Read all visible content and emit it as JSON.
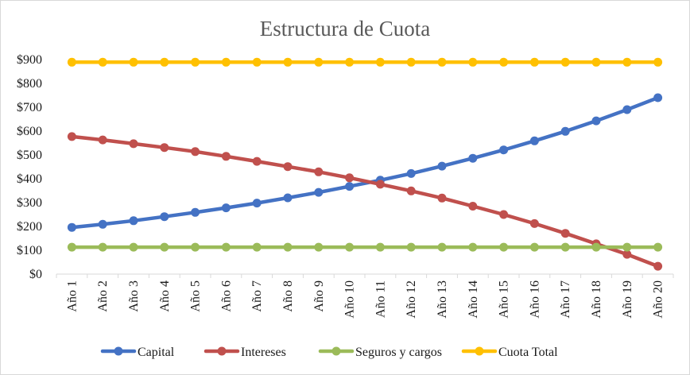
{
  "chart_data": {
    "type": "line",
    "title": "Estructura de Cuota",
    "xlabel": "",
    "ylabel": "",
    "categories": [
      "Año 1",
      "Año 2",
      "Año 3",
      "Año 4",
      "Año 5",
      "Año 6",
      "Año 7",
      "Año 8",
      "Año 9",
      "Año 10",
      "Año 11",
      "Año 12",
      "Año 13",
      "Año 14",
      "Año 15",
      "Año 16",
      "Año 17",
      "Año 18",
      "Año 19",
      "Año 20"
    ],
    "ylim": [
      0,
      900
    ],
    "yticks": [
      0,
      100,
      200,
      300,
      400,
      500,
      600,
      700,
      800,
      900
    ],
    "ytick_labels": [
      "$0",
      "$100",
      "$200",
      "$300",
      "$400",
      "$500",
      "$600",
      "$700",
      "$800",
      "$900"
    ],
    "grid": false,
    "legend_position": "bottom",
    "series": [
      {
        "name": "Capital",
        "color": "#4472c4",
        "values": [
          196,
          209,
          224,
          241,
          259,
          278,
          298,
          320,
          343,
          368,
          394,
          422,
          453,
          486,
          521,
          559,
          599,
          643,
          690,
          740
        ]
      },
      {
        "name": "Intereses",
        "color": "#c0504d",
        "values": [
          577,
          563,
          547,
          531,
          514,
          494,
          473,
          451,
          429,
          404,
          377,
          349,
          319,
          285,
          250,
          212,
          171,
          127,
          83,
          33
        ]
      },
      {
        "name": "Seguros y cargos",
        "color": "#9bbb59",
        "values": [
          113,
          113,
          113,
          113,
          113,
          113,
          113,
          113,
          113,
          113,
          113,
          113,
          113,
          113,
          113,
          113,
          113,
          113,
          113,
          113
        ]
      },
      {
        "name": "Cuota Total",
        "color": "#ffc000",
        "values": [
          889,
          889,
          889,
          889,
          889,
          889,
          889,
          889,
          889,
          889,
          889,
          889,
          889,
          889,
          889,
          889,
          889,
          889,
          889,
          889
        ]
      }
    ]
  }
}
